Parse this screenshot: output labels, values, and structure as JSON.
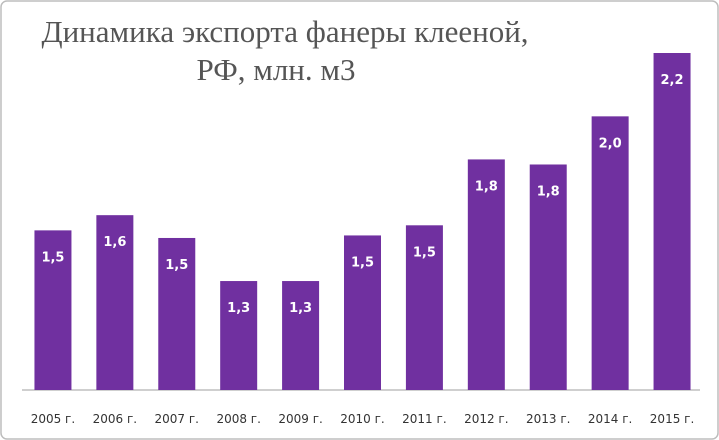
{
  "chart_data": {
    "type": "bar",
    "title": [
      "Динамика экспорта фанеры клееной,",
      "РФ, млн. м3"
    ],
    "categories": [
      "2005 г.",
      "2006 г.",
      "2007 г.",
      "2008 г.",
      "2009 г.",
      "2010 г.",
      "2011 г.",
      "2012 г.",
      "2013 г.",
      "2014 г.",
      "2015 г."
    ],
    "values": [
      1.5,
      1.56,
      1.47,
      1.3,
      1.3,
      1.48,
      1.52,
      1.78,
      1.76,
      1.95,
      2.2
    ],
    "value_labels": [
      "1,5",
      "1,6",
      "1,5",
      "1,3",
      "1,3",
      "1,5",
      "1,5",
      "1,8",
      "1,8",
      "2,0",
      "2,2"
    ],
    "color": "#7030a0",
    "ylim": [
      0.87,
      2.2
    ]
  }
}
